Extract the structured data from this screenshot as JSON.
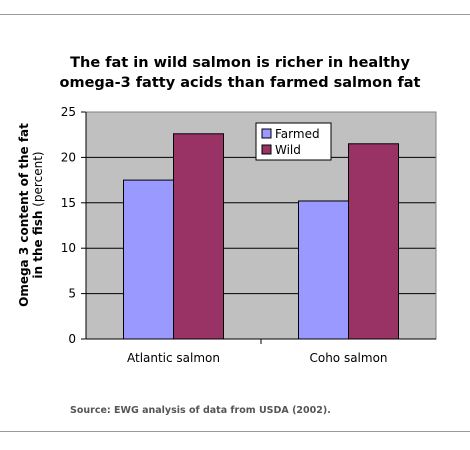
{
  "chart_data": {
    "type": "bar",
    "title_lines": [
      "The fat in wild salmon is  richer in healthy",
      "omega-3 fatty acids than farmed salmon fat"
    ],
    "ylabel_line1": "Omega 3 content of the fat",
    "ylabel_line2_bold": "in the fish",
    "ylabel_line2_normal": " (percent)",
    "xlabel": "",
    "categories": [
      "Atlantic salmon",
      "Coho salmon"
    ],
    "series": [
      {
        "name": "Farmed",
        "values": [
          17.5,
          15.2
        ],
        "color": "#9999ff"
      },
      {
        "name": "Wild",
        "values": [
          22.6,
          21.5
        ],
        "color": "#993366"
      }
    ],
    "ylim": [
      0,
      25
    ],
    "yticks": [
      0,
      5,
      10,
      15,
      20,
      25
    ],
    "grid": true,
    "plot_background": "#c0c0c0",
    "legend_position": "top-center"
  },
  "source": "Source:  EWG analysis of data from USDA (2002)."
}
